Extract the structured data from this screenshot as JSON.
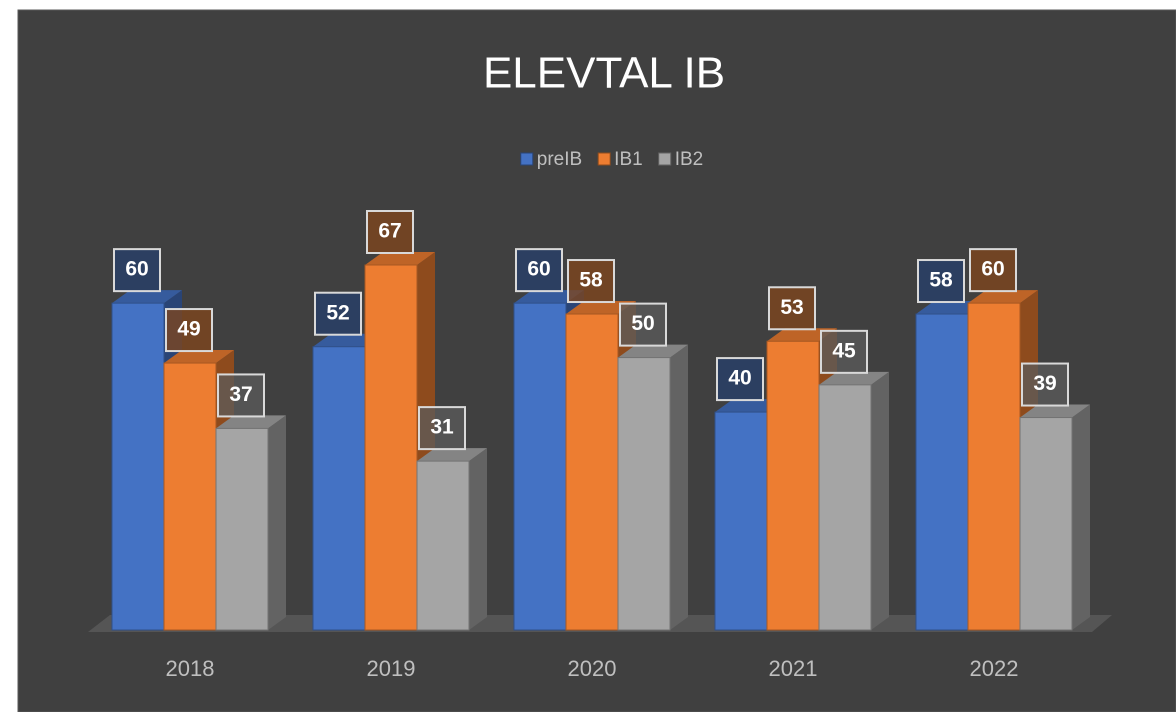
{
  "chart_data": {
    "type": "bar3d",
    "title": "ELEVTAL IB",
    "categories": [
      "2018",
      "2019",
      "2020",
      "2021",
      "2022"
    ],
    "series": [
      {
        "name": "preIB",
        "color": "#4472c4",
        "values": [
          60,
          52,
          60,
          40,
          58
        ]
      },
      {
        "name": "IB1",
        "color": "#ed7d31",
        "values": [
          49,
          67,
          58,
          53,
          60
        ]
      },
      {
        "name": "IB2",
        "color": "#a5a5a5",
        "values": [
          37,
          31,
          50,
          45,
          39
        ]
      }
    ],
    "legend": "top",
    "grid": false
  }
}
